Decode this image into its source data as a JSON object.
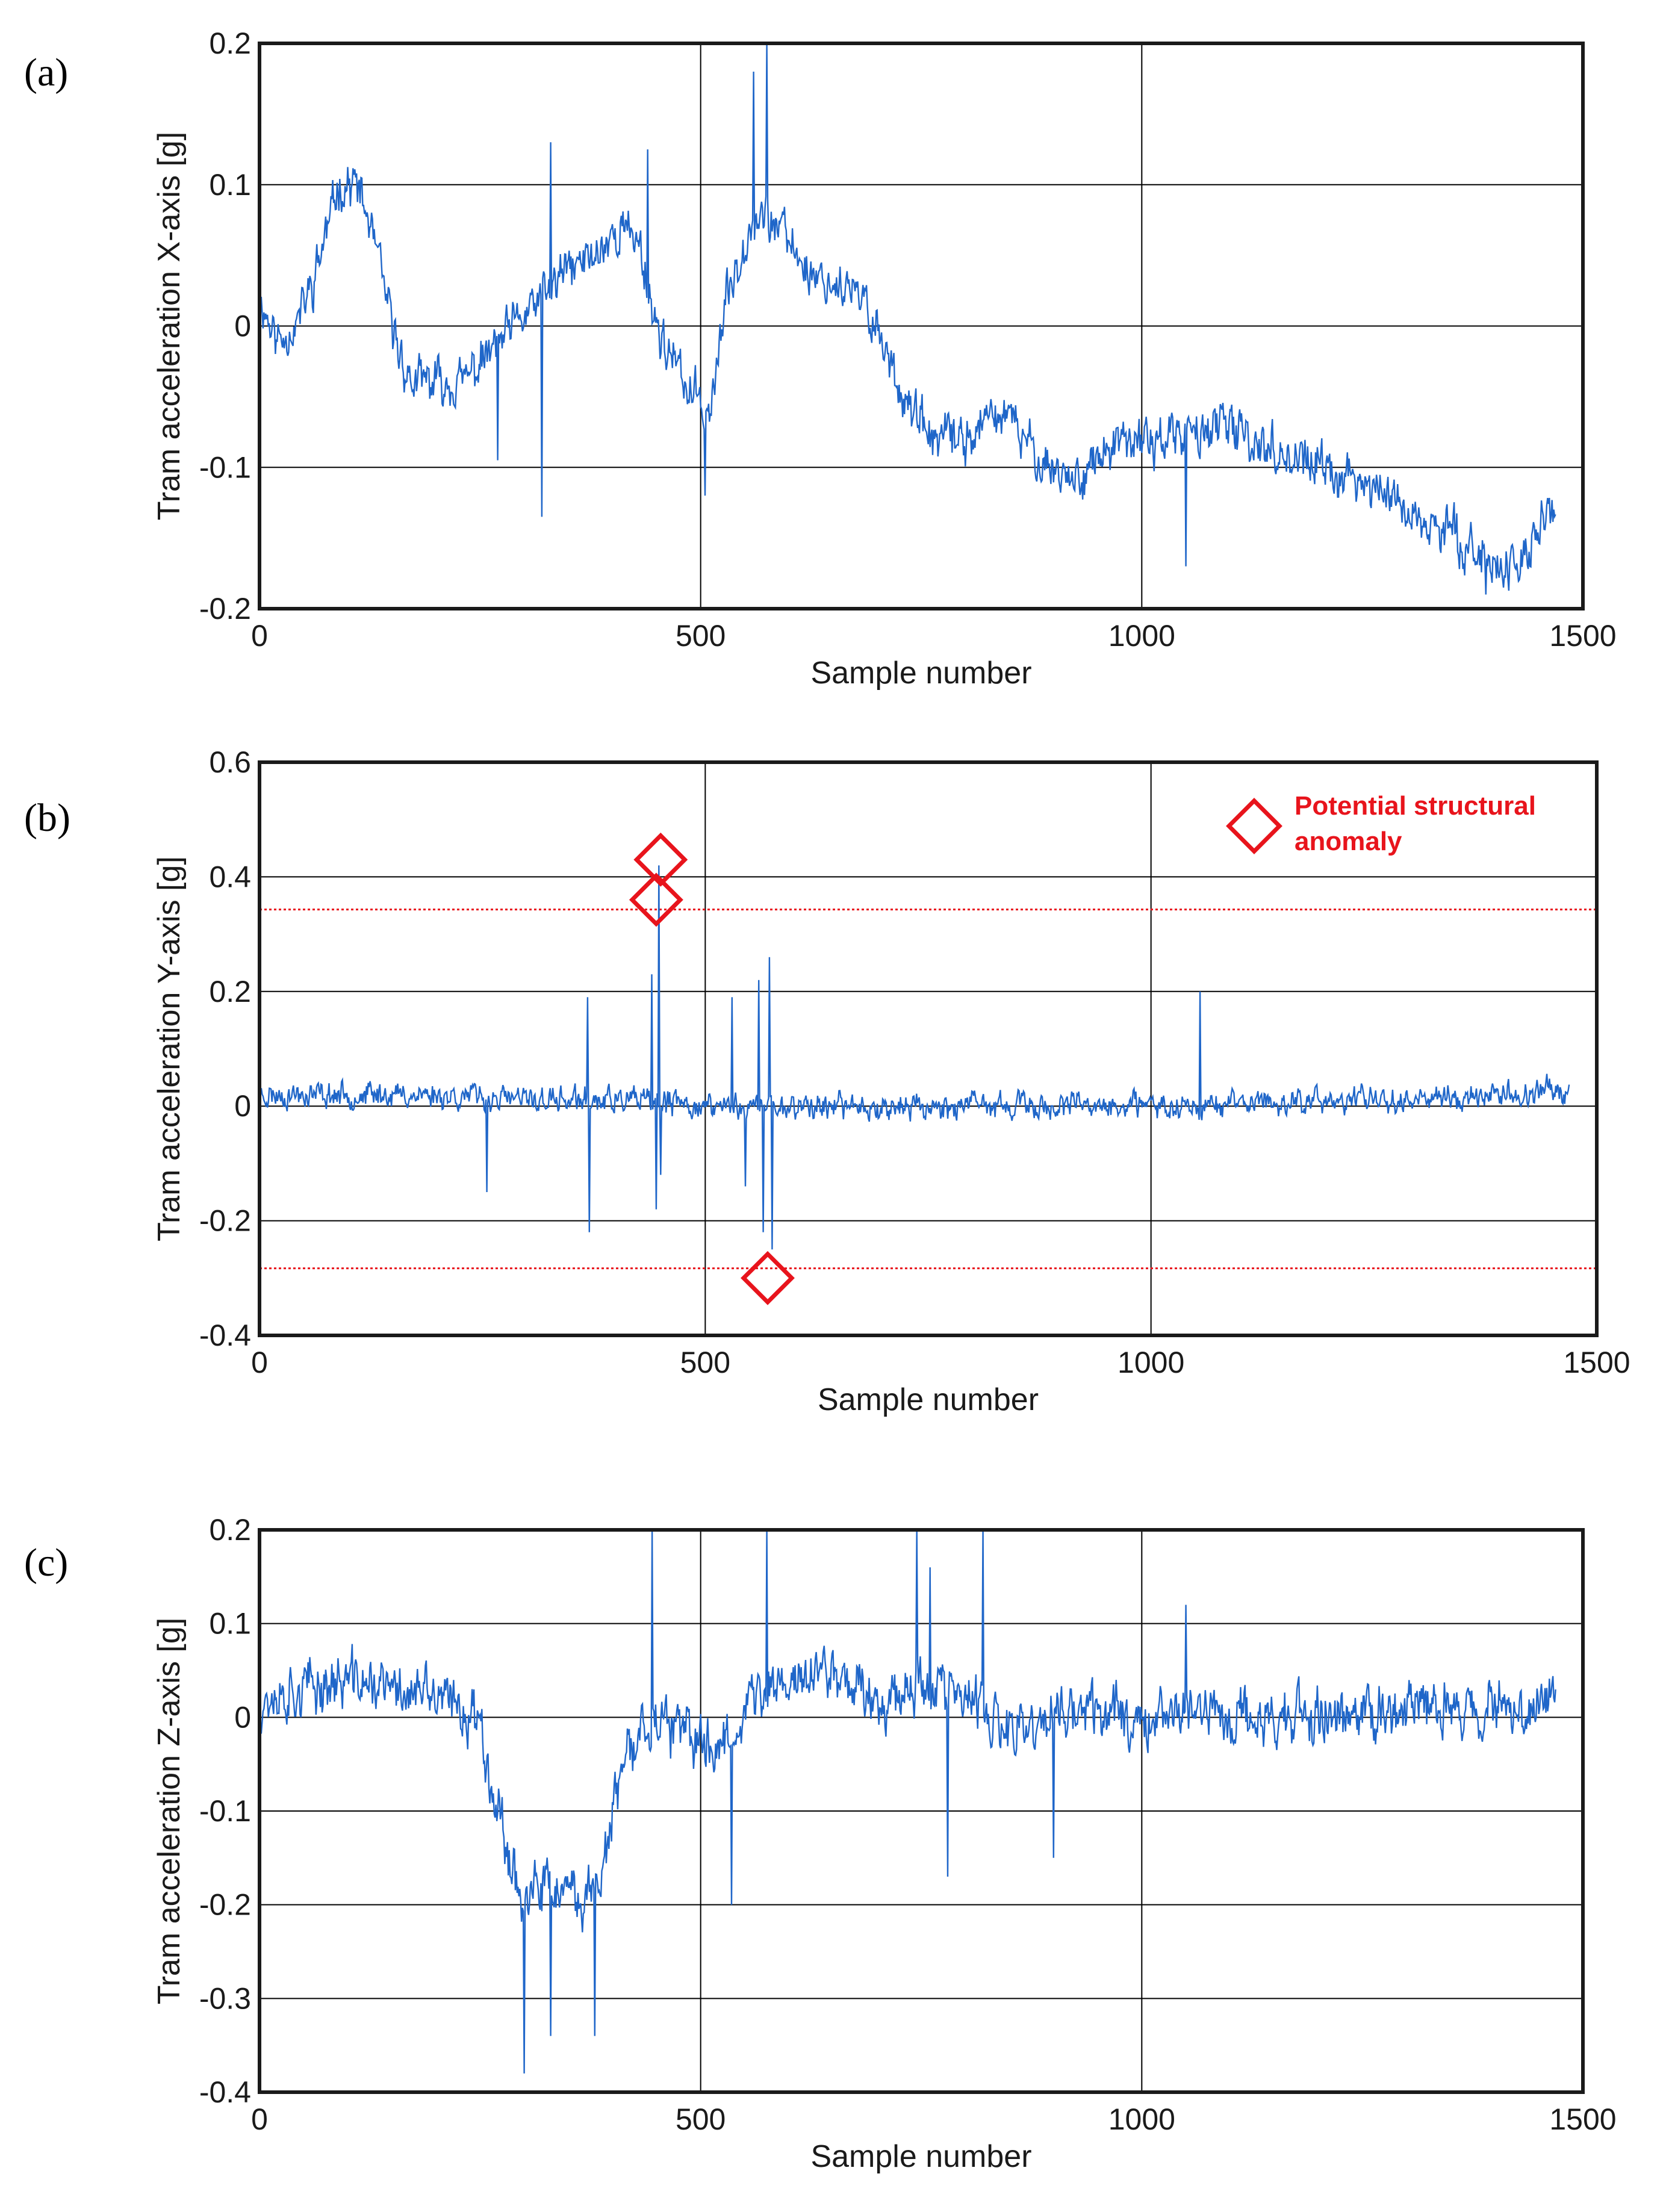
{
  "colors": {
    "series": "#1f66c9",
    "anomaly": "#e8141c",
    "grid": "#000000",
    "frame": "#1a1a1a"
  },
  "chart_data": [
    {
      "type": "line",
      "panel_label": "(a)",
      "xlabel": "Sample number",
      "ylabel": "Tram acceleration X-axis [g]",
      "xlim": [
        0,
        1500
      ],
      "ylim": [
        -0.2,
        0.2
      ],
      "xticks": [
        0,
        500,
        1000,
        1500
      ],
      "xtick_labels": [
        "0",
        "500",
        "1000",
        "1500"
      ],
      "yticks": [
        -0.2,
        -0.1,
        0,
        0.1,
        0.2
      ],
      "ytick_labels": [
        "-0.2",
        "-0.1",
        "0",
        "0.1",
        "0.2"
      ],
      "grid": true,
      "n_samples": 1470,
      "noise": 0.022,
      "seed": 11,
      "series": [
        {
          "name": "X-axis",
          "envelope": [
            [
              0,
              0.02
            ],
            [
              20,
              -0.01
            ],
            [
              40,
              0.0
            ],
            [
              60,
              0.03
            ],
            [
              90,
              0.1
            ],
            [
              110,
              0.1
            ],
            [
              130,
              0.06
            ],
            [
              150,
              0.0
            ],
            [
              170,
              -0.04
            ],
            [
              200,
              -0.04
            ],
            [
              230,
              -0.04
            ],
            [
              260,
              -0.02
            ],
            [
              290,
              0.0
            ],
            [
              320,
              0.02
            ],
            [
              350,
              0.04
            ],
            [
              380,
              0.05
            ],
            [
              410,
              0.07
            ],
            [
              430,
              0.06
            ],
            [
              450,
              0.0
            ],
            [
              480,
              -0.04
            ],
            [
              510,
              -0.06
            ],
            [
              530,
              0.02
            ],
            [
              560,
              0.08
            ],
            [
              590,
              0.07
            ],
            [
              620,
              0.04
            ],
            [
              650,
              0.03
            ],
            [
              680,
              0.02
            ],
            [
              700,
              0.0
            ],
            [
              730,
              -0.05
            ],
            [
              760,
              -0.08
            ],
            [
              800,
              -0.08
            ],
            [
              840,
              -0.06
            ],
            [
              880,
              -0.09
            ],
            [
              920,
              -0.11
            ],
            [
              960,
              -0.09
            ],
            [
              1000,
              -0.08
            ],
            [
              1040,
              -0.08
            ],
            [
              1080,
              -0.07
            ],
            [
              1120,
              -0.08
            ],
            [
              1160,
              -0.09
            ],
            [
              1200,
              -0.1
            ],
            [
              1240,
              -0.11
            ],
            [
              1280,
              -0.12
            ],
            [
              1320,
              -0.14
            ],
            [
              1360,
              -0.15
            ],
            [
              1400,
              -0.17
            ],
            [
              1430,
              -0.17
            ],
            [
              1450,
              -0.14
            ],
            [
              1470,
              -0.13
            ]
          ],
          "spikes": [
            [
              320,
              -0.135
            ],
            [
              330,
              0.13
            ],
            [
              440,
              0.125
            ],
            [
              560,
              0.18
            ],
            [
              575,
              0.2
            ],
            [
              505,
              -0.12
            ],
            [
              270,
              -0.095
            ],
            [
              1050,
              -0.17
            ],
            [
              1390,
              -0.19
            ]
          ]
        }
      ]
    },
    {
      "type": "line",
      "panel_label": "(b)",
      "xlabel": "Sample number",
      "ylabel": "Tram acceleration Y-axis [g]",
      "xlim": [
        0,
        1500
      ],
      "ylim": [
        -0.4,
        0.6
      ],
      "xticks": [
        0,
        500,
        1000,
        1500
      ],
      "xtick_labels": [
        "0",
        "500",
        "1000",
        "1500"
      ],
      "yticks": [
        -0.4,
        -0.2,
        0,
        0.2,
        0.4,
        0.6
      ],
      "ytick_labels": [
        "-0.4",
        "-0.2",
        "0",
        "0.2",
        "0.4",
        "0.6"
      ],
      "grid": true,
      "n_samples": 1470,
      "noise": 0.03,
      "seed": 23,
      "thresholds": [
        0.343,
        -0.283
      ],
      "anomalies": [
        [
          445,
          0.36
        ],
        [
          450,
          0.43
        ],
        [
          570,
          -0.3
        ]
      ],
      "legend": {
        "label": "Potential structural anomaly",
        "line1": "Potential structural",
        "line2": "anomaly",
        "position": "top-right"
      },
      "series": [
        {
          "name": "Y-axis",
          "envelope": [
            [
              0,
              0.02
            ],
            [
              200,
              0.02
            ],
            [
              300,
              0.01
            ],
            [
              400,
              0.01
            ],
            [
              500,
              0.0
            ],
            [
              600,
              0.0
            ],
            [
              800,
              0.0
            ],
            [
              1000,
              0.0
            ],
            [
              1200,
              0.01
            ],
            [
              1400,
              0.02
            ],
            [
              1470,
              0.03
            ]
          ],
          "spikes": [
            [
              255,
              -0.15
            ],
            [
              368,
              0.19
            ],
            [
              370,
              -0.22
            ],
            [
              440,
              0.23
            ],
            [
              445,
              -0.18
            ],
            [
              448,
              0.42
            ],
            [
              450,
              -0.12
            ],
            [
              530,
              0.19
            ],
            [
              545,
              -0.14
            ],
            [
              560,
              0.22
            ],
            [
              565,
              -0.22
            ],
            [
              572,
              0.26
            ],
            [
              575,
              -0.25
            ],
            [
              1055,
              0.2
            ]
          ]
        }
      ]
    },
    {
      "type": "line",
      "panel_label": "(c)",
      "xlabel": "Sample number",
      "ylabel": "Tram acceleration Z-axis [g]",
      "xlim": [
        0,
        1500
      ],
      "ylim": [
        -0.4,
        0.2
      ],
      "xticks": [
        0,
        500,
        1000,
        1500
      ],
      "xtick_labels": [
        "0",
        "500",
        "1000",
        "1500"
      ],
      "yticks": [
        -0.4,
        -0.3,
        -0.2,
        -0.1,
        0,
        0.1,
        0.2
      ],
      "ytick_labels": [
        "-0.4",
        "-0.3",
        "-0.2",
        "-0.1",
        "0",
        "0.1",
        "0.2"
      ],
      "grid": true,
      "n_samples": 1470,
      "noise": 0.04,
      "seed": 37,
      "series": [
        {
          "name": "Z-axis",
          "envelope": [
            [
              0,
              0.02
            ],
            [
              50,
              0.03
            ],
            [
              100,
              0.04
            ],
            [
              150,
              0.03
            ],
            [
              200,
              0.02
            ],
            [
              250,
              0.0
            ],
            [
              270,
              -0.1
            ],
            [
              300,
              -0.2
            ],
            [
              330,
              -0.18
            ],
            [
              360,
              -0.2
            ],
            [
              390,
              -0.16
            ],
            [
              410,
              -0.06
            ],
            [
              440,
              0.0
            ],
            [
              480,
              -0.02
            ],
            [
              520,
              -0.03
            ],
            [
              560,
              0.02
            ],
            [
              600,
              0.04
            ],
            [
              650,
              0.05
            ],
            [
              700,
              0.02
            ],
            [
              750,
              0.04
            ],
            [
              800,
              0.02
            ],
            [
              850,
              -0.02
            ],
            [
              900,
              0.0
            ],
            [
              950,
              0.01
            ],
            [
              1000,
              0.0
            ],
            [
              1050,
              0.01
            ],
            [
              1100,
              0.0
            ],
            [
              1200,
              0.0
            ],
            [
              1300,
              0.01
            ],
            [
              1400,
              0.01
            ],
            [
              1470,
              0.02
            ]
          ],
          "spikes": [
            [
              300,
              -0.38
            ],
            [
              330,
              -0.34
            ],
            [
              380,
              -0.34
            ],
            [
              445,
              0.2
            ],
            [
              535,
              -0.2
            ],
            [
              575,
              0.2
            ],
            [
              745,
              0.2
            ],
            [
              760,
              0.16
            ],
            [
              820,
              0.2
            ],
            [
              780,
              -0.17
            ],
            [
              900,
              -0.15
            ],
            [
              1050,
              0.12
            ]
          ]
        }
      ]
    }
  ]
}
